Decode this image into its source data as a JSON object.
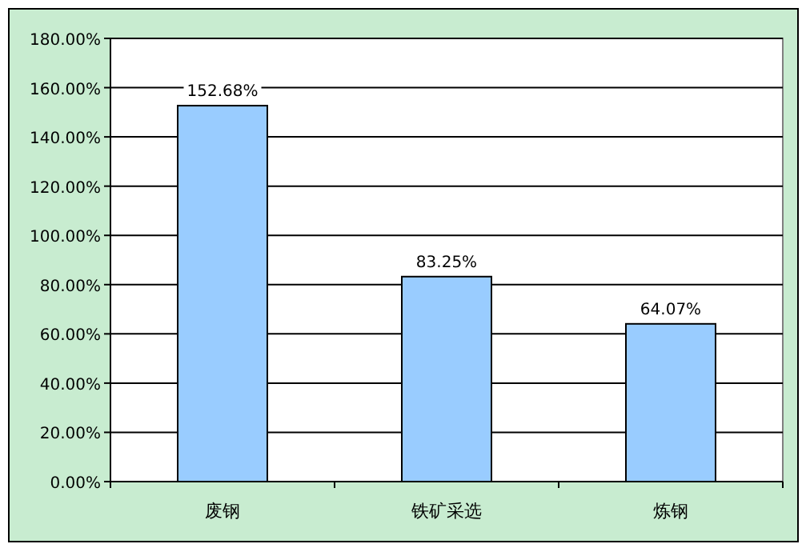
{
  "chart_data": {
    "type": "bar",
    "categories": [
      "废钢",
      "铁矿采选",
      "炼钢"
    ],
    "values": [
      152.68,
      83.25,
      64.07
    ],
    "value_labels": [
      "152.68%",
      "83.25%",
      "64.07%"
    ],
    "color": "#99ccff",
    "ylim": [
      0,
      180
    ],
    "yticks": [
      {
        "value": 0,
        "label": "0.00%"
      },
      {
        "value": 20,
        "label": "20.00%"
      },
      {
        "value": 40,
        "label": "40.00%"
      },
      {
        "value": 60,
        "label": "60.00%"
      },
      {
        "value": 80,
        "label": "80.00%"
      },
      {
        "value": 100,
        "label": "100.00%"
      },
      {
        "value": 120,
        "label": "120.00%"
      },
      {
        "value": 140,
        "label": "140.00%"
      },
      {
        "value": 160,
        "label": "160.00%"
      },
      {
        "value": 180,
        "label": "180.00%"
      }
    ],
    "grid": "y"
  }
}
